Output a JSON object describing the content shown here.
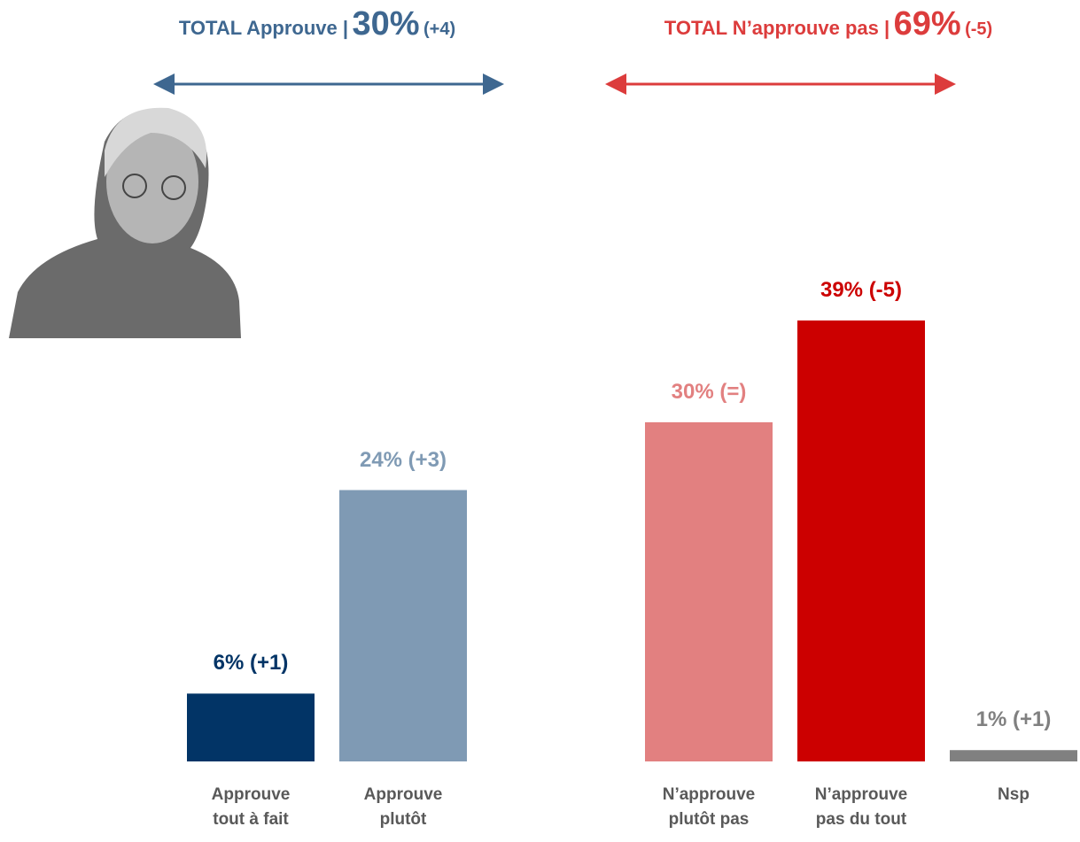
{
  "chart_data": {
    "type": "bar",
    "groups": [
      {
        "title": "TOTAL Approuve |",
        "total": "30%",
        "change": "(+4)",
        "color": "#3e6790"
      },
      {
        "title": "TOTAL N’approuve pas |",
        "total": "69%",
        "change": "(-5)",
        "color": "#dc3c3c"
      }
    ],
    "categories": [
      [
        "Approuve",
        "tout à fait"
      ],
      [
        "Approuve",
        "plutôt"
      ],
      [
        "N’approuve",
        "plutôt pas"
      ],
      [
        "N’approuve",
        "pas du tout"
      ],
      [
        "Nsp"
      ]
    ],
    "values": [
      6,
      24,
      30,
      39,
      1
    ],
    "value_labels": [
      "6% (+1)",
      "24% (+3)",
      "30% (=)",
      "39% (-5)",
      "1% (+1)"
    ],
    "colors": [
      "#023466",
      "#7f9ab4",
      "#e28080",
      "#cc0000",
      "#808080"
    ]
  }
}
